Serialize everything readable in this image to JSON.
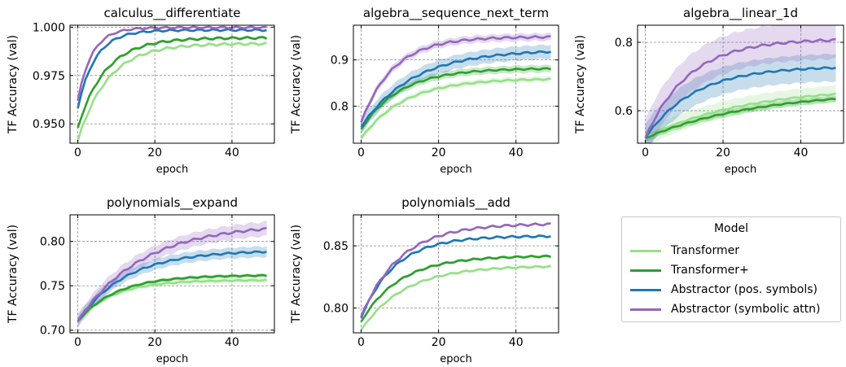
{
  "chart_data": [
    {
      "type": "line",
      "title": "calculus__differentiate",
      "xlabel": "epoch",
      "ylabel": "TF Accuracy (val)",
      "xlim": [
        -2,
        51
      ],
      "ylim": [
        0.94,
        1.001
      ],
      "xticks": [
        0,
        20,
        40
      ],
      "yticks": [
        0.95,
        0.975,
        1.0
      ],
      "ytick_labels": [
        "0.950",
        "0.975",
        "1.000"
      ],
      "grid": true,
      "series": [
        {
          "name": "Transformer",
          "start": 0.941,
          "plateau": 0.9915,
          "rate": 0.13,
          "band": 0.0008
        },
        {
          "name": "Transformer+",
          "start": 0.948,
          "plateau": 0.9945,
          "rate": 0.14,
          "band": 0.0008
        },
        {
          "name": "Abstractor (pos. symbols)",
          "start": 0.958,
          "plateau": 0.9985,
          "rate": 0.22,
          "band": 0.0006
        },
        {
          "name": "Abstractor (symbolic attn)",
          "start": 0.962,
          "plateau": 0.9998,
          "rate": 0.27,
          "band": 0.0005
        }
      ]
    },
    {
      "type": "line",
      "title": "algebra__sequence_next_term",
      "xlabel": "epoch",
      "ylabel": "TF Accuracy (val)",
      "xlim": [
        -2,
        51
      ],
      "ylim": [
        0.72,
        0.975
      ],
      "xticks": [
        0,
        20,
        40
      ],
      "yticks": [
        0.8,
        0.9
      ],
      "ytick_labels": [
        "0.8",
        "0.9"
      ],
      "grid": true,
      "series": [
        {
          "name": "Transformer",
          "start": 0.73,
          "plateau": 0.86,
          "rate": 0.09,
          "band": 0.006
        },
        {
          "name": "Transformer+",
          "start": 0.75,
          "plateau": 0.882,
          "rate": 0.1,
          "band": 0.008
        },
        {
          "name": "Abstractor (pos. symbols)",
          "start": 0.755,
          "plateau": 0.922,
          "rate": 0.075,
          "band": 0.015
        },
        {
          "name": "Abstractor (symbolic attn)",
          "start": 0.765,
          "plateau": 0.95,
          "rate": 0.12,
          "band": 0.008
        }
      ]
    },
    {
      "type": "line",
      "title": "algebra__linear_1d",
      "xlabel": "epoch",
      "ylabel": "TF Accuracy (val)",
      "xlim": [
        -2,
        51
      ],
      "ylim": [
        0.505,
        0.85
      ],
      "xticks": [
        0,
        20,
        40
      ],
      "yticks": [
        0.6,
        0.8
      ],
      "ytick_labels": [
        "0.6",
        "0.8"
      ],
      "grid": true,
      "series": [
        {
          "name": "Transformer",
          "start": 0.52,
          "plateau": 0.67,
          "rate": 0.04,
          "band": 0.025
        },
        {
          "name": "Transformer+",
          "start": 0.52,
          "plateau": 0.66,
          "rate": 0.035,
          "band": 0.01
        },
        {
          "name": "Abstractor (pos. symbols)",
          "start": 0.52,
          "plateau": 0.73,
          "rate": 0.08,
          "band": 0.04
        },
        {
          "name": "Abstractor (symbolic attn)",
          "start": 0.52,
          "plateau": 0.81,
          "rate": 0.09,
          "band": 0.055
        }
      ]
    },
    {
      "type": "line",
      "title": "polynomials__expand",
      "xlabel": "epoch",
      "ylabel": "TF Accuracy (val)",
      "xlim": [
        -2,
        51
      ],
      "ylim": [
        0.697,
        0.83
      ],
      "xticks": [
        0,
        20,
        40
      ],
      "yticks": [
        0.7,
        0.75,
        0.8
      ],
      "ytick_labels": [
        "0.70",
        "0.75",
        "0.80"
      ],
      "grid": true,
      "series": [
        {
          "name": "Transformer",
          "start": 0.71,
          "plateau": 0.7565,
          "rate": 0.11,
          "band": 0.003
        },
        {
          "name": "Transformer+",
          "start": 0.71,
          "plateau": 0.762,
          "rate": 0.1,
          "band": 0.002
        },
        {
          "name": "Abstractor (pos. symbols)",
          "start": 0.71,
          "plateau": 0.79,
          "rate": 0.08,
          "band": 0.006
        },
        {
          "name": "Abstractor (symbolic attn)",
          "start": 0.71,
          "plateau": 0.82,
          "rate": 0.06,
          "band": 0.008
        }
      ]
    },
    {
      "type": "line",
      "title": "polynomials__add",
      "xlabel": "epoch",
      "ylabel": "TF Accuracy (val)",
      "xlim": [
        -2,
        51
      ],
      "ylim": [
        0.78,
        0.875
      ],
      "xticks": [
        0,
        20,
        40
      ],
      "yticks": [
        0.8,
        0.85
      ],
      "ytick_labels": [
        "0.80",
        "0.85"
      ],
      "grid": true,
      "series": [
        {
          "name": "Transformer",
          "start": 0.782,
          "plateau": 0.834,
          "rate": 0.09,
          "band": 0.0012
        },
        {
          "name": "Transformer+",
          "start": 0.789,
          "plateau": 0.842,
          "rate": 0.1,
          "band": 0.0012
        },
        {
          "name": "Abstractor (pos. symbols)",
          "start": 0.792,
          "plateau": 0.858,
          "rate": 0.115,
          "band": 0.001
        },
        {
          "name": "Abstractor (symbolic attn)",
          "start": 0.793,
          "plateau": 0.868,
          "rate": 0.1,
          "band": 0.001
        }
      ]
    }
  ],
  "legend": {
    "title": "Model",
    "items": [
      {
        "label": "Transformer",
        "color": "#98df8a"
      },
      {
        "label": "Transformer+",
        "color": "#2ca02c"
      },
      {
        "label": "Abstractor (pos. symbols)",
        "color": "#1f77b4"
      },
      {
        "label": "Abstractor (symbolic attn)",
        "color": "#9467bd"
      }
    ]
  }
}
